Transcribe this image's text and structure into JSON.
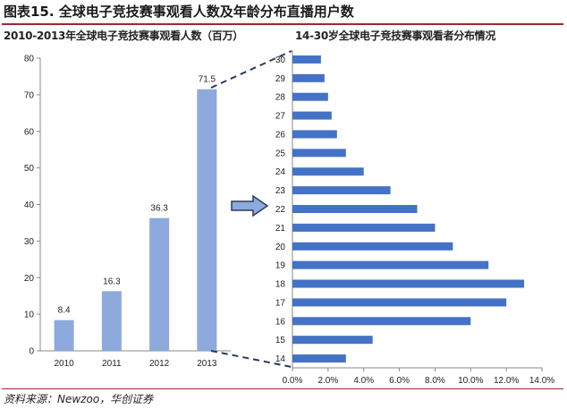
{
  "figure_title": "图表15.  全球电子竞技赛事观看人数及年龄分布直播用户数",
  "source": "资料来源：Newzoo，华创证券",
  "colors": {
    "bar": "#8EA9DB",
    "bar_h": "#4472C4",
    "rule": "#9A2A2A"
  },
  "chart_data": [
    {
      "type": "bar",
      "title": "2010-2013年全球电子竞技赛事观看人数（百万）",
      "categories": [
        "2010",
        "2011",
        "2012",
        "2013"
      ],
      "values": [
        8.4,
        16.3,
        36.3,
        71.5
      ],
      "data_labels": [
        "8.4",
        "16.3",
        "36.3",
        "71.5"
      ],
      "ylim": [
        0,
        80
      ],
      "yticks": [
        "0",
        "10",
        "20",
        "30",
        "40",
        "50",
        "60",
        "70",
        "80"
      ],
      "xlabel": "",
      "ylabel": "",
      "grid": false
    },
    {
      "type": "bar",
      "orientation": "horizontal",
      "title": "14-30岁全球电子竞技赛事观看者分布情况",
      "categories": [
        "30",
        "29",
        "28",
        "27",
        "26",
        "25",
        "24",
        "23",
        "22",
        "21",
        "20",
        "19",
        "18",
        "17",
        "16",
        "15",
        "14"
      ],
      "values": [
        1.6,
        1.8,
        2.0,
        2.2,
        2.5,
        3.0,
        4.0,
        5.5,
        7.0,
        8.0,
        9.0,
        11.0,
        13.0,
        12.0,
        10.0,
        4.5,
        3.0
      ],
      "xlim": [
        0,
        14
      ],
      "xticks": [
        "0.0%",
        "2.0%",
        "4.0%",
        "6.0%",
        "8.0%",
        "10.0%",
        "12.0%",
        "14.0%"
      ],
      "xlabel": "",
      "ylabel": "",
      "grid": false
    }
  ]
}
